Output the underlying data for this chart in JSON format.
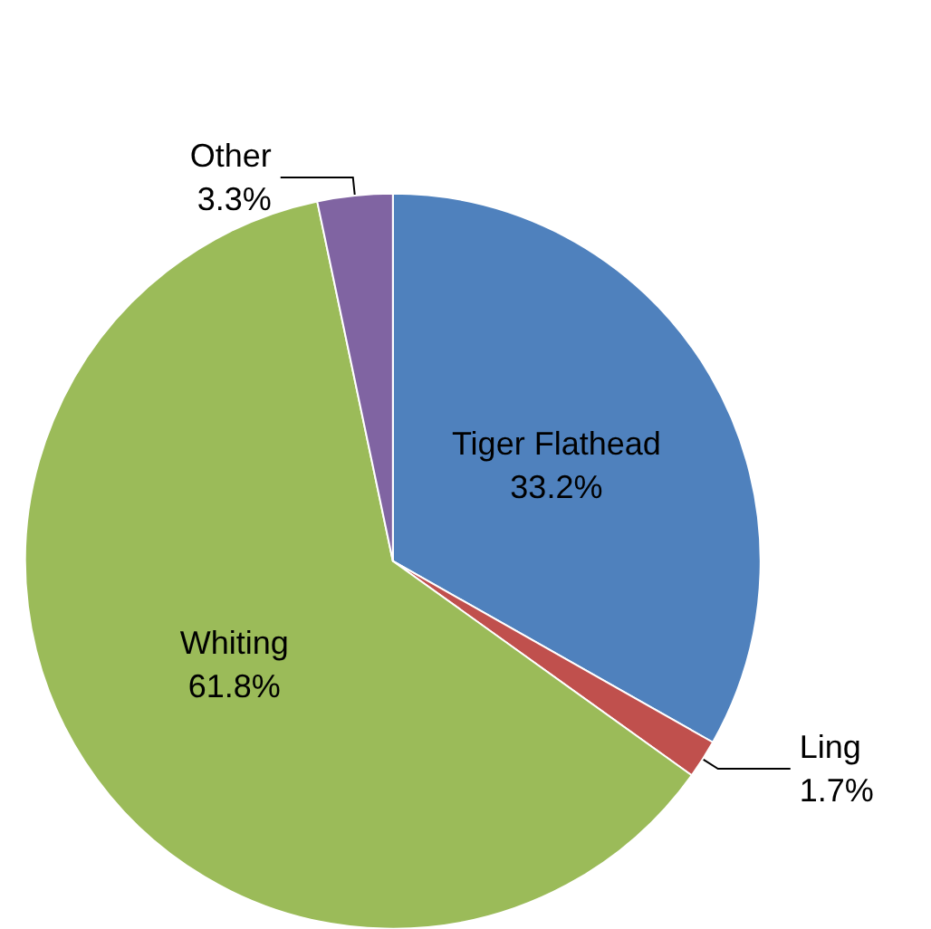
{
  "chart_data": {
    "type": "pie",
    "categories": [
      "Tiger Flathead",
      "Ling",
      "Whiting",
      "Other"
    ],
    "values": [
      33.2,
      1.7,
      61.8,
      3.3
    ],
    "colors": [
      "#4f81bd",
      "#c0504d",
      "#9bbb59",
      "#8064a2"
    ],
    "value_labels": [
      "33.2%",
      "1.7%",
      "61.8%",
      "3.3%"
    ]
  }
}
